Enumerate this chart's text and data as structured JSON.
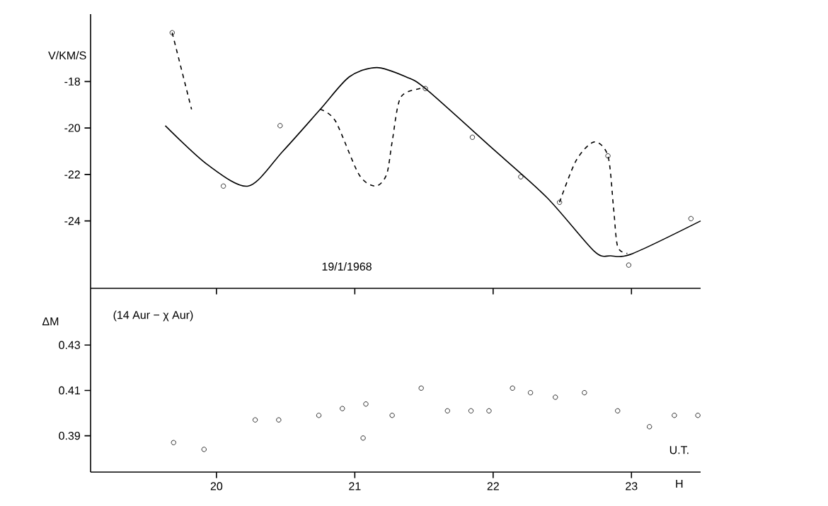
{
  "chart_data": [
    {
      "type": "line",
      "ylabel": "V/KM/S",
      "annotations": [
        "19/1/1968"
      ],
      "xlim": [
        19.09,
        23.5
      ],
      "xticks": [
        {
          "value": 20,
          "label": null
        },
        {
          "value": 21,
          "label": null
        },
        {
          "value": 22,
          "label": null
        },
        {
          "value": 23,
          "label": null
        }
      ],
      "ylim": [
        -26.9,
        -15.1
      ],
      "yticks": [
        -18,
        -20,
        -22,
        -24
      ],
      "tick_labels": "y",
      "series": [
        {
          "type": "line",
          "color": "#000000",
          "line_style": "solid",
          "x": [
            19.63,
            19.94,
            20.23,
            20.48,
            20.75,
            20.96,
            21.16,
            21.37,
            21.51,
            21.98,
            22.39,
            22.73,
            22.85,
            23.01,
            23.5
          ],
          "values": [
            -19.9,
            -21.6,
            -22.5,
            -21.0,
            -19.2,
            -17.8,
            -17.4,
            -17.8,
            -18.3,
            -20.8,
            -23.0,
            -25.3,
            -25.5,
            -25.4,
            -24.0
          ]
        },
        {
          "type": "line",
          "color": "#000000",
          "line_style": "dashed",
          "x": [
            19.68,
            19.82,
            null,
            20.75,
            20.86,
            21.03,
            21.15,
            21.23,
            21.27,
            21.33,
            21.47,
            21.51,
            null,
            22.48,
            22.6,
            22.73,
            22.83,
            22.87,
            22.9,
            22.97
          ],
          "values": [
            -15.9,
            -19.2,
            null,
            -19.2,
            -19.7,
            -22.0,
            -22.5,
            -22.0,
            -20.6,
            -18.7,
            -18.3,
            -18.3,
            null,
            -23.2,
            -21.4,
            -20.6,
            -21.2,
            -23.4,
            -25.1,
            -25.4
          ]
        },
        {
          "type": "scatter",
          "color": "#000000",
          "marker": "circle",
          "x": [
            19.68,
            20.05,
            20.46,
            21.51,
            21.85,
            22.2,
            22.48,
            22.83,
            22.98,
            23.43
          ],
          "values": [
            -15.9,
            -22.5,
            -19.9,
            -18.3,
            -20.4,
            -22.1,
            -23.2,
            -21.2,
            -25.9,
            -23.9
          ]
        }
      ]
    },
    {
      "type": "scatter",
      "marker": "circle",
      "ylabel": "ΔM",
      "xlabel": "H",
      "annotations": [
        "(14 Aur − χ Aur)",
        "U.T."
      ],
      "xlim": [
        19.09,
        23.5
      ],
      "xticks": [
        20,
        21,
        22,
        23
      ],
      "ylim": [
        0.374,
        0.455
      ],
      "yticks": [
        0.39,
        0.41,
        0.43
      ],
      "series": [
        {
          "color": "#000000",
          "x": [
            19.69,
            19.91,
            20.28,
            20.45,
            20.74,
            20.91,
            21.06,
            21.08,
            21.27,
            21.48,
            21.67,
            21.84,
            21.97,
            22.14,
            22.27,
            22.45,
            22.66,
            22.9,
            23.13,
            23.31,
            23.48
          ],
          "values": [
            0.387,
            0.384,
            0.397,
            0.397,
            0.399,
            0.402,
            0.389,
            0.404,
            0.399,
            0.411,
            0.401,
            0.401,
            0.401,
            0.411,
            0.409,
            0.407,
            0.409,
            0.401,
            0.394,
            0.399,
            0.399
          ]
        }
      ]
    }
  ]
}
